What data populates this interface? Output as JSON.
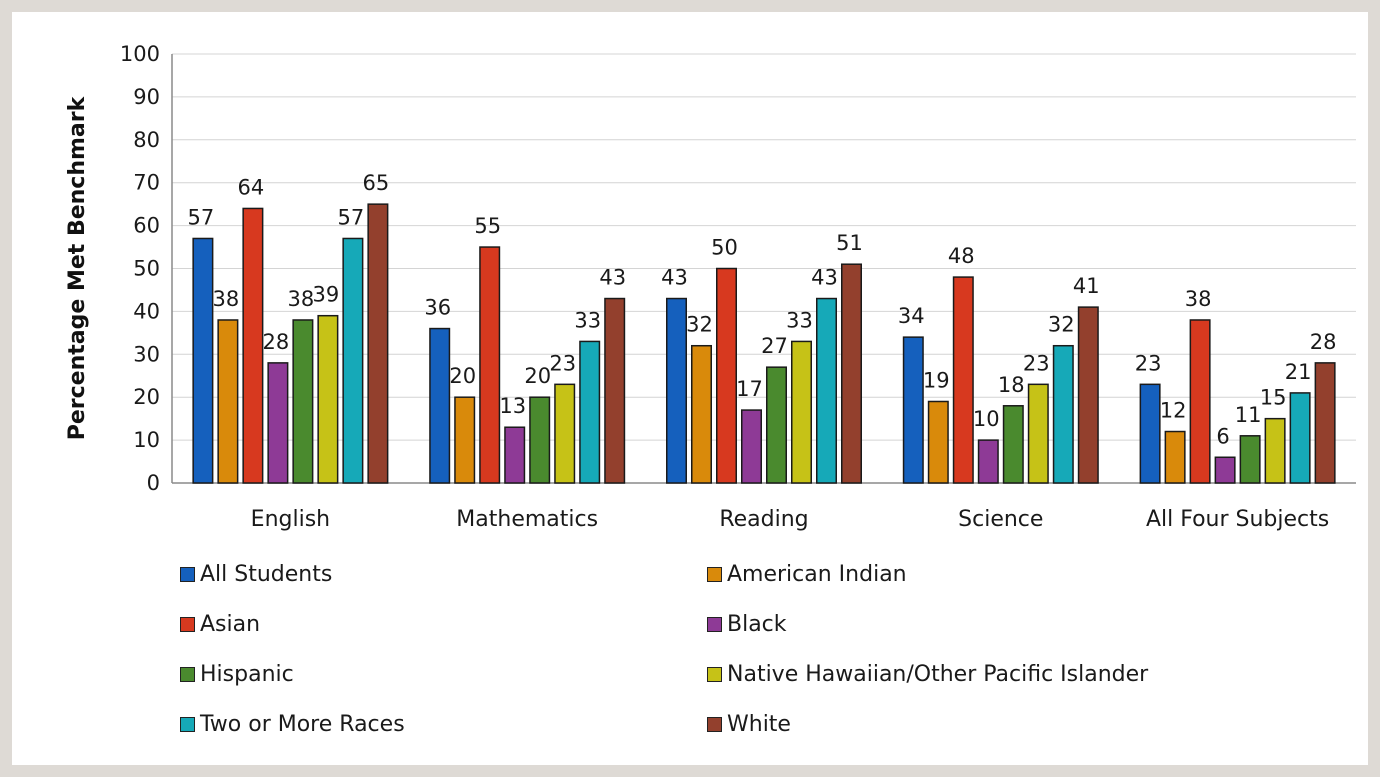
{
  "chart_data": {
    "type": "bar",
    "ylabel": "Percentage Met Benchmark",
    "xlabel": "",
    "ylim": [
      0,
      100
    ],
    "yticks": [
      "0",
      "10",
      "20",
      "30",
      "40",
      "50",
      "60",
      "70",
      "80",
      "90",
      "100"
    ],
    "grid": true,
    "legend_position": "bottom",
    "categories": [
      "English",
      "Mathematics",
      "Reading",
      "Science",
      "All Four Subjects"
    ],
    "series": [
      {
        "name": "All Students",
        "color": "#1560bd",
        "values": [
          57,
          36,
          43,
          34,
          23
        ]
      },
      {
        "name": "American Indian",
        "color": "#d98a0b",
        "values": [
          38,
          20,
          32,
          19,
          12
        ]
      },
      {
        "name": "Asian",
        "color": "#d7391f",
        "values": [
          64,
          55,
          50,
          48,
          38
        ]
      },
      {
        "name": "Black",
        "color": "#8e3a96",
        "values": [
          28,
          13,
          17,
          10,
          6
        ]
      },
      {
        "name": "Hispanic",
        "color": "#4a8a2e",
        "values": [
          38,
          20,
          27,
          18,
          11
        ]
      },
      {
        "name": "Native Hawaiian/Other Pacific Islander",
        "color": "#c6c217",
        "values": [
          39,
          23,
          33,
          23,
          15
        ]
      },
      {
        "name": "Two or More Races",
        "color": "#16a9b8",
        "values": [
          57,
          33,
          43,
          32,
          21
        ]
      },
      {
        "name": "White",
        "color": "#93402d",
        "values": [
          65,
          43,
          51,
          41,
          28
        ]
      }
    ]
  }
}
